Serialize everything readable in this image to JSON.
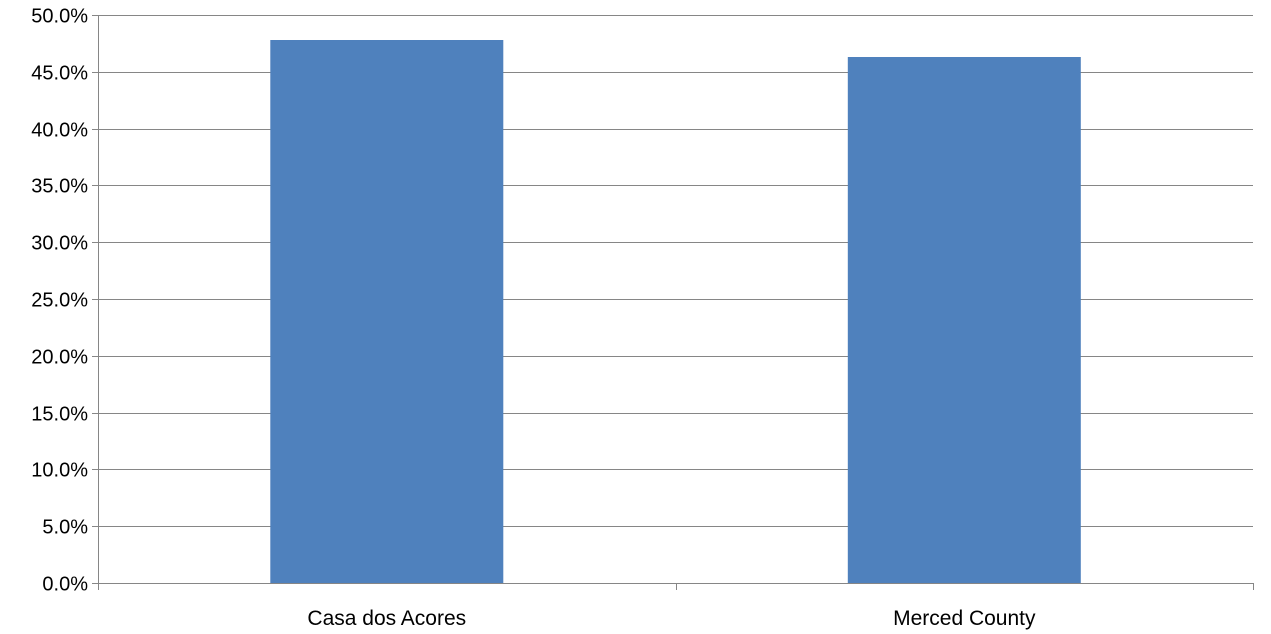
{
  "chart_data": {
    "type": "bar",
    "title": "",
    "xlabel": "",
    "ylabel": "",
    "categories": [
      "Casa dos Acores",
      "Merced County"
    ],
    "values": [
      47.8,
      46.3
    ],
    "ylim": [
      0,
      50
    ],
    "ytick_step": 5,
    "ytick_labels": [
      "0.0%",
      "5.0%",
      "10.0%",
      "15.0%",
      "20.0%",
      "25.0%",
      "30.0%",
      "35.0%",
      "40.0%",
      "45.0%",
      "50.0%"
    ],
    "value_format": "percent",
    "grid": true,
    "legend": "none",
    "colors": {
      "bar": "#4f81bd",
      "grid": "#868686",
      "axis": "#868686"
    }
  }
}
